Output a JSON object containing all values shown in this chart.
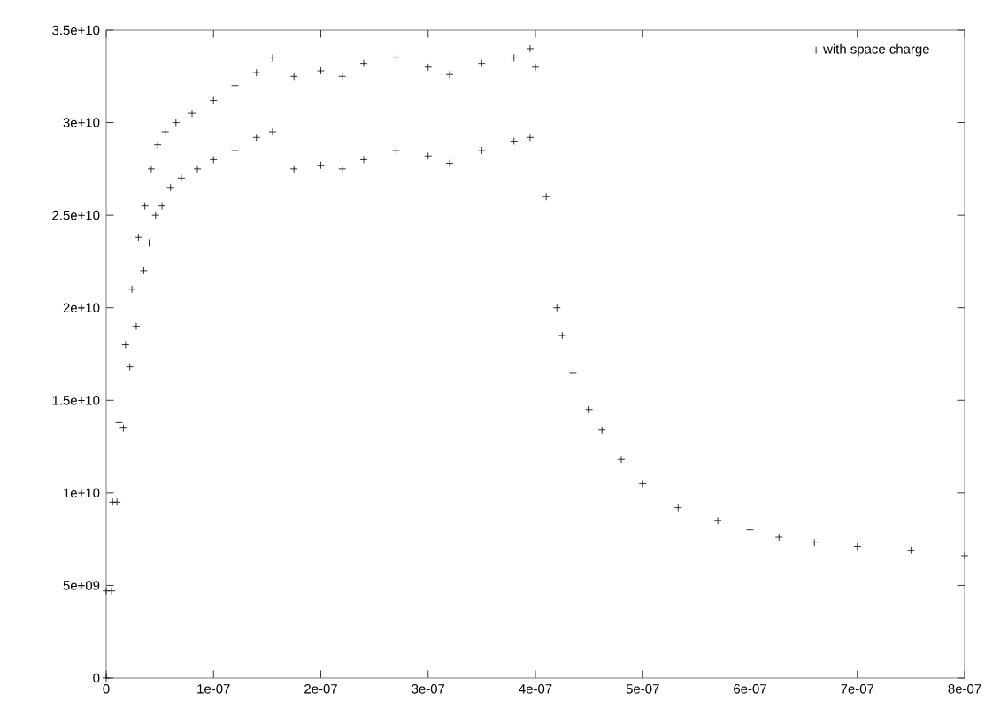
{
  "chart_data": {
    "type": "scatter",
    "marker": "cross",
    "legend": "top right",
    "grid": false,
    "xlim": [
      0,
      8e-07
    ],
    "ylim": [
      0,
      35000000000.0
    ],
    "xticks": [
      0,
      {
        "value": 1e-07,
        "label": "1e-07"
      },
      {
        "value": 2e-07,
        "label": "2e-07"
      },
      {
        "value": 3e-07,
        "label": "3e-07"
      },
      {
        "value": 4e-07,
        "label": "4e-07"
      },
      {
        "value": 5e-07,
        "label": "5e-07"
      },
      {
        "value": 6e-07,
        "label": "6e-07"
      },
      {
        "value": 7e-07,
        "label": "7e-07"
      },
      {
        "value": 8e-07,
        "label": "8e-07"
      }
    ],
    "yticks": [
      0,
      {
        "value": 5000000000.0,
        "label": "5e+09"
      },
      {
        "value": 10000000000.0,
        "label": "1e+10"
      },
      {
        "value": 15000000000.0,
        "label": "1.5e+10"
      },
      {
        "value": 20000000000.0,
        "label": "2e+10"
      },
      {
        "value": 25000000000.0,
        "label": "2.5e+10"
      },
      {
        "value": 30000000000.0,
        "label": "3e+10"
      },
      {
        "value": 35000000000.0,
        "label": "3.5e+10"
      }
    ],
    "series": [
      {
        "name": "with space charge",
        "color": "#000000",
        "x": [
          0,
          0,
          5e-09,
          6e-09,
          1e-08,
          1.2e-08,
          1.6e-08,
          1.8e-08,
          2.2e-08,
          2.4e-08,
          2.8e-08,
          3e-08,
          3.5e-08,
          3.6e-08,
          4e-08,
          4.2e-08,
          4.6e-08,
          4.8e-08,
          5.2e-08,
          5.5e-08,
          6e-08,
          6.5e-08,
          7e-08,
          8e-08,
          8.5e-08,
          1e-07,
          1e-07,
          1.2e-07,
          1.2e-07,
          1.4e-07,
          1.4e-07,
          1.55e-07,
          1.55e-07,
          1.75e-07,
          1.75e-07,
          2e-07,
          2e-07,
          2.2e-07,
          2.2e-07,
          2.4e-07,
          2.4e-07,
          2.7e-07,
          2.7e-07,
          3e-07,
          3e-07,
          3.2e-07,
          3.2e-07,
          3.5e-07,
          3.5e-07,
          3.8e-07,
          3.8e-07,
          3.95e-07,
          3.95e-07,
          4e-07,
          4.1e-07,
          4.2e-07,
          4.25e-07,
          4.35e-07,
          4.5e-07,
          4.62e-07,
          4.8e-07,
          5e-07,
          5.33e-07,
          5.7e-07,
          6e-07,
          6.27e-07,
          6.6e-07,
          7e-07,
          7.5e-07,
          8e-07
        ],
        "values": [
          0,
          4700000000.0,
          4700000000.0,
          9500000000.0,
          9500000000.0,
          13800000000.0,
          13500000000.0,
          18000000000.0,
          16800000000.0,
          21000000000.0,
          19000000000.0,
          23800000000.0,
          22000000000.0,
          25500000000.0,
          23500000000.0,
          27500000000.0,
          25000000000.0,
          28800000000.0,
          25500000000.0,
          29500000000.0,
          26500000000.0,
          30000000000.0,
          27000000000.0,
          30500000000.0,
          27500000000.0,
          31200000000.0,
          28000000000.0,
          32000000000.0,
          28500000000.0,
          32700000000.0,
          29200000000.0,
          33500000000.0,
          29500000000.0,
          32500000000.0,
          27500000000.0,
          32800000000.0,
          27700000000.0,
          32500000000.0,
          27500000000.0,
          33200000000.0,
          28000000000.0,
          33500000000.0,
          28500000000.0,
          33000000000.0,
          28200000000.0,
          32600000000.0,
          27800000000.0,
          33200000000.0,
          28500000000.0,
          33500000000.0,
          29000000000.0,
          34000000000.0,
          29200000000.0,
          33000000000.0,
          26000000000.0,
          20000000000.0,
          18500000000.0,
          16500000000.0,
          14500000000.0,
          13400000000.0,
          11800000000.0,
          10500000000.0,
          9200000000.0,
          8500000000.0,
          8000000000.0,
          7600000000.0,
          7300000000.0,
          7100000000.0,
          6900000000.0,
          6600000000.0
        ]
      }
    ]
  }
}
